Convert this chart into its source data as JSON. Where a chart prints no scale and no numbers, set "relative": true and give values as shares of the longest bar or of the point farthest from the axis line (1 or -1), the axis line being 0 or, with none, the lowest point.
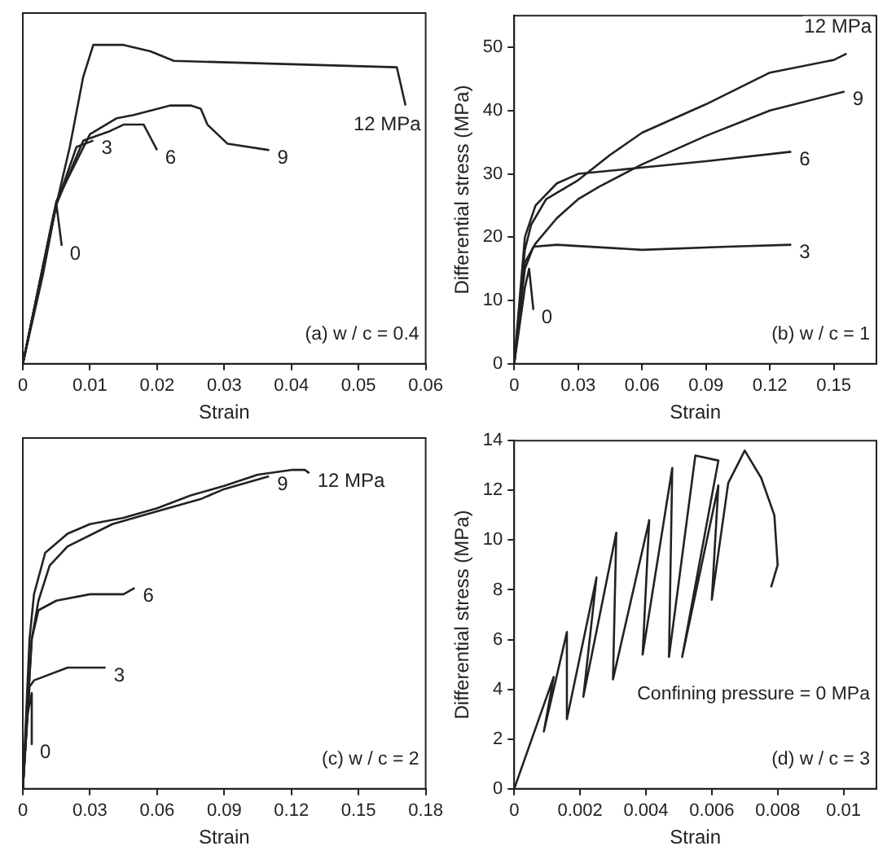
{
  "chart_data": [
    {
      "type": "line",
      "xlabel": "Strain",
      "relative": true,
      "xlim": [
        0,
        0.06
      ],
      "xticks": [
        0,
        0.01,
        0.02,
        0.03,
        0.04,
        0.05,
        0.06
      ],
      "grid": false,
      "legend": false,
      "marker": "none",
      "line_style": "solid",
      "tick_labels": "x",
      "annotations": [
        "(a) w / c = 0.4"
      ],
      "series": [
        {
          "name": "12 MPa",
          "color": "#222222",
          "x": [
            0,
            0.003,
            0.005,
            0.007,
            0.009,
            0.0105,
            0.015,
            0.019,
            0.0225,
            0.0557,
            0.057
          ],
          "values": [
            0,
            0.28,
            0.5,
            0.68,
            0.9,
            1.0,
            1.0,
            0.98,
            0.95,
            0.93,
            0.81
          ]
        },
        {
          "name": "9",
          "color": "#222222",
          "x": [
            0,
            0.005,
            0.01,
            0.014,
            0.0165,
            0.022,
            0.025,
            0.0265,
            0.0275,
            0.0305,
            0.0367
          ],
          "values": [
            0,
            0.51,
            0.72,
            0.77,
            0.78,
            0.81,
            0.81,
            0.8,
            0.75,
            0.69,
            0.67
          ]
        },
        {
          "name": "6",
          "color": "#222222",
          "x": [
            0,
            0.005,
            0.009,
            0.013,
            0.015,
            0.018,
            0.019,
            0.02
          ],
          "values": [
            0,
            0.5,
            0.7,
            0.73,
            0.75,
            0.75,
            0.71,
            0.67
          ]
        },
        {
          "name": "3",
          "color": "#222222",
          "x": [
            0,
            0.005,
            0.008,
            0.0105
          ],
          "values": [
            0,
            0.5,
            0.68,
            0.7
          ]
        },
        {
          "name": "0",
          "color": "#222222",
          "x": [
            0,
            0.0045,
            0.005,
            0.0058
          ],
          "values": [
            0,
            0.46,
            0.5,
            0.37
          ]
        }
      ]
    },
    {
      "type": "line",
      "xlabel": "Strain",
      "ylabel": "Differential stress (MPa)",
      "xlim": [
        0,
        0.17
      ],
      "xticks": [
        0,
        0.03,
        0.06,
        0.09,
        0.12,
        0.15
      ],
      "ylim": [
        0,
        55
      ],
      "yticks": [
        0,
        10,
        20,
        30,
        40,
        50
      ],
      "grid": false,
      "legend": false,
      "marker": "none",
      "line_style": "solid",
      "annotations": [
        "(b) w / c = 1"
      ],
      "series": [
        {
          "name": "12 MPa",
          "color": "#222222",
          "x": [
            0,
            0.005,
            0.008,
            0.015,
            0.03,
            0.045,
            0.06,
            0.09,
            0.12,
            0.15,
            0.156
          ],
          "values": [
            0,
            18,
            22,
            26,
            29,
            33,
            36.5,
            41,
            46,
            48,
            49
          ]
        },
        {
          "name": "9",
          "color": "#222222",
          "x": [
            0,
            0.005,
            0.01,
            0.02,
            0.03,
            0.04,
            0.06,
            0.09,
            0.12,
            0.155
          ],
          "values": [
            0,
            16,
            19,
            23,
            26,
            28,
            31.5,
            36,
            40,
            43
          ]
        },
        {
          "name": "6",
          "color": "#222222",
          "x": [
            0,
            0.005,
            0.01,
            0.02,
            0.03,
            0.06,
            0.09,
            0.13
          ],
          "values": [
            0,
            20,
            25,
            28.5,
            30,
            31,
            32,
            33.5
          ]
        },
        {
          "name": "3",
          "color": "#222222",
          "x": [
            0,
            0.005,
            0.009,
            0.02,
            0.06,
            0.1,
            0.13
          ],
          "values": [
            0,
            15,
            18.5,
            18.8,
            18,
            18.5,
            18.8
          ]
        },
        {
          "name": "0",
          "color": "#222222",
          "x": [
            0,
            0.005,
            0.007,
            0.009
          ],
          "values": [
            0,
            12,
            15,
            8.5
          ]
        }
      ]
    },
    {
      "type": "line",
      "xlabel": "Strain",
      "relative": true,
      "xlim": [
        0,
        0.18
      ],
      "xticks": [
        0,
        0.03,
        0.06,
        0.09,
        0.12,
        0.15,
        0.18
      ],
      "grid": false,
      "legend": false,
      "marker": "none",
      "line_style": "solid",
      "tick_labels": "x",
      "annotations": [
        "(c) w / c = 2"
      ],
      "series": [
        {
          "name": "12 MPa",
          "color": "#222222",
          "x": [
            0,
            0.003,
            0.005,
            0.01,
            0.02,
            0.03,
            0.045,
            0.06,
            0.075,
            0.09,
            0.105,
            0.12,
            0.126,
            0.128
          ],
          "values": [
            0,
            0.47,
            0.61,
            0.74,
            0.8,
            0.83,
            0.85,
            0.88,
            0.92,
            0.95,
            0.985,
            1.0,
            1.0,
            0.99
          ]
        },
        {
          "name": "9",
          "color": "#222222",
          "x": [
            0,
            0.004,
            0.007,
            0.012,
            0.02,
            0.04,
            0.06,
            0.08,
            0.09,
            0.11
          ],
          "values": [
            0,
            0.47,
            0.59,
            0.7,
            0.76,
            0.83,
            0.87,
            0.91,
            0.94,
            0.98
          ]
        },
        {
          "name": "6",
          "color": "#222222",
          "x": [
            0,
            0.004,
            0.007,
            0.015,
            0.03,
            0.045,
            0.05
          ],
          "values": [
            0,
            0.47,
            0.56,
            0.59,
            0.61,
            0.61,
            0.63
          ]
        },
        {
          "name": "3",
          "color": "#222222",
          "x": [
            0,
            0.003,
            0.005,
            0.02,
            0.037
          ],
          "values": [
            0,
            0.32,
            0.34,
            0.38,
            0.38
          ]
        },
        {
          "name": "0",
          "color": "#222222",
          "x": [
            0,
            0.002,
            0.004,
            0.004
          ],
          "values": [
            0,
            0.23,
            0.3,
            0.14
          ]
        }
      ]
    },
    {
      "type": "line",
      "xlabel": "Strain",
      "ylabel": "Differential stress (MPa)",
      "xlim": [
        0,
        0.011
      ],
      "xticks": [
        0,
        0.002,
        0.004,
        0.006,
        0.008,
        0.01
      ],
      "ylim": [
        0,
        14
      ],
      "yticks": [
        0,
        2,
        4,
        6,
        8,
        10,
        12,
        14
      ],
      "grid": false,
      "legend": false,
      "marker": "none",
      "line_style": "solid",
      "annotations": [
        "Confining pressure = 0 MPa",
        "(d) w / c = 3"
      ],
      "series": [
        {
          "color": "#222222",
          "x": [
            0,
            0.0012,
            0.0009,
            0.0016,
            0.0016,
            0.0025,
            0.0021,
            0.0031,
            0.003,
            0.0041,
            0.0039,
            0.0048,
            0.0047,
            0.0055,
            0.0062,
            0.0051,
            0.0062,
            0.006,
            0.0065,
            0.007,
            0.0075,
            0.0079,
            0.008,
            0.0078
          ],
          "values": [
            0,
            4.5,
            2.3,
            6.3,
            2.8,
            8.5,
            3.7,
            10.3,
            4.4,
            10.8,
            5.4,
            12.9,
            5.3,
            13.4,
            13.2,
            5.3,
            12.2,
            7.6,
            12.3,
            13.6,
            12.5,
            11,
            9,
            8.1
          ]
        }
      ]
    }
  ]
}
